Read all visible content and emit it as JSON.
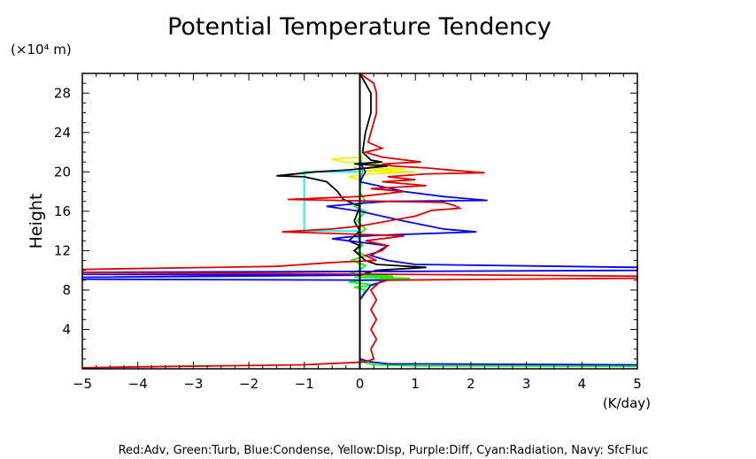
{
  "chart_data": {
    "type": "line",
    "title": "Potential Temperature Tendency",
    "ylabel": "Height",
    "yunit": "(×10⁴ m)",
    "xunit": "(K/day)",
    "xlim": [
      -5,
      5
    ],
    "ylim": [
      0,
      30
    ],
    "xticks": [
      "−5",
      "−4",
      "−3",
      "−2",
      "−1",
      "0",
      "1",
      "2",
      "3",
      "4",
      "5"
    ],
    "xtick_values": [
      -5,
      -4,
      -3,
      -2,
      -1,
      0,
      1,
      2,
      3,
      4,
      5
    ],
    "yticks": [
      "4",
      "8",
      "12",
      "16",
      "20",
      "24",
      "28"
    ],
    "ytick_values": [
      4,
      8,
      12,
      16,
      20,
      24,
      28
    ],
    "legend_text": "Red:Adv, Green:Turb, Blue:Condense, Yellow:Disp, Purple:Diff, Cyan:Radiation, Navy: SfcFluc",
    "series": [
      {
        "color": "#f0f000",
        "points": [
          [
            0,
            22
          ],
          [
            0.05,
            21.5
          ],
          [
            -0.5,
            21.3
          ],
          [
            -0.3,
            21
          ],
          [
            0.3,
            20.8
          ],
          [
            0.6,
            20.6
          ],
          [
            -0.1,
            20.4
          ],
          [
            0.8,
            20.3
          ],
          [
            0.1,
            20.1
          ],
          [
            1,
            20
          ],
          [
            0.2,
            19.8
          ],
          [
            -0.2,
            19.5
          ],
          [
            0,
            19.2
          ],
          [
            0,
            0
          ]
        ]
      },
      {
        "color": "#00ff00",
        "points": [
          [
            0,
            22
          ],
          [
            0.05,
            20
          ],
          [
            0,
            18
          ],
          [
            0.1,
            17
          ],
          [
            -0.1,
            16.5
          ],
          [
            0.1,
            16
          ],
          [
            -0.05,
            15
          ],
          [
            0.1,
            14.2
          ],
          [
            -0.05,
            13.5
          ],
          [
            0.05,
            12.5
          ],
          [
            -0.1,
            12
          ],
          [
            0.1,
            11.5
          ],
          [
            -0.15,
            11
          ],
          [
            0.1,
            10.5
          ],
          [
            0,
            10
          ],
          [
            -0.2,
            9.6
          ],
          [
            0.6,
            9.4
          ],
          [
            -0.1,
            9.3
          ],
          [
            0.9,
            9.2
          ],
          [
            0.1,
            9
          ],
          [
            -0.2,
            8.8
          ],
          [
            0.3,
            8.5
          ],
          [
            -0.1,
            8.3
          ],
          [
            0.1,
            8
          ],
          [
            0,
            7
          ],
          [
            0,
            1
          ],
          [
            0.1,
            0.6
          ],
          [
            0.3,
            0.4
          ],
          [
            1,
            0.3
          ],
          [
            5,
            0.25
          ]
        ]
      },
      {
        "color": "#00ffff",
        "points": [
          [
            0,
            20
          ],
          [
            -1,
            20
          ],
          [
            -1,
            14
          ],
          [
            0,
            14
          ]
        ]
      },
      {
        "color": "#000000",
        "points": [
          [
            0,
            30
          ],
          [
            0.2,
            28
          ],
          [
            0.2,
            26
          ],
          [
            0.1,
            24
          ],
          [
            0.05,
            22
          ],
          [
            0.2,
            21.2
          ],
          [
            0.4,
            21
          ],
          [
            -0.1,
            20.8
          ],
          [
            0.5,
            20.6
          ],
          [
            -0.2,
            20.2
          ],
          [
            -0.8,
            20
          ],
          [
            -1.5,
            19.6
          ],
          [
            -1,
            19.5
          ],
          [
            -0.6,
            19
          ],
          [
            -0.4,
            18
          ],
          [
            -0.3,
            17.2
          ],
          [
            0,
            16.5
          ],
          [
            -0.1,
            15
          ],
          [
            0,
            14
          ],
          [
            -0.2,
            13
          ],
          [
            0,
            12.5
          ],
          [
            -0.1,
            12
          ],
          [
            0.1,
            11
          ],
          [
            0.3,
            10.6
          ],
          [
            1.2,
            10.3
          ],
          [
            0.3,
            10
          ],
          [
            0,
            9.5
          ],
          [
            0,
            0
          ]
        ]
      },
      {
        "color": "#0000ff",
        "points": [
          [
            0,
            21
          ],
          [
            0.1,
            20
          ],
          [
            0,
            19
          ],
          [
            0.8,
            18
          ],
          [
            1.5,
            17.5
          ],
          [
            2.3,
            17.1
          ],
          [
            0.5,
            17
          ],
          [
            0,
            16.8
          ],
          [
            -0.6,
            16.5
          ],
          [
            0,
            16
          ],
          [
            0.8,
            15
          ],
          [
            1.5,
            14.2
          ],
          [
            2.1,
            13.9
          ],
          [
            0.5,
            13.6
          ],
          [
            -0.2,
            13.4
          ],
          [
            -0.5,
            13.2
          ],
          [
            -0.2,
            13
          ],
          [
            0.5,
            12.5
          ],
          [
            0.2,
            11.5
          ],
          [
            0.5,
            11
          ],
          [
            1,
            10.6
          ],
          [
            5,
            10.3
          ],
          [
            5,
            10
          ],
          [
            1,
            9.9
          ],
          [
            -5,
            9.8
          ],
          [
            -5,
            9.6
          ],
          [
            0,
            9.5
          ],
          [
            -5,
            9.3
          ],
          [
            -5,
            9.1
          ],
          [
            0.5,
            9.0
          ],
          [
            0.2,
            8.5
          ],
          [
            0,
            7
          ],
          [
            0,
            1
          ],
          [
            0.2,
            0.7
          ],
          [
            0.5,
            0.5
          ],
          [
            5,
            0.4
          ]
        ]
      },
      {
        "color": "#dd0000",
        "points": [
          [
            0,
            30
          ],
          [
            0.25,
            29
          ],
          [
            0.3,
            28
          ],
          [
            0.3,
            26
          ],
          [
            0.2,
            24
          ],
          [
            0.15,
            23
          ],
          [
            0.4,
            22.4
          ],
          [
            0.1,
            22
          ],
          [
            0.4,
            21.5
          ],
          [
            1.1,
            21
          ],
          [
            0.4,
            20.8
          ],
          [
            0.6,
            20.6
          ],
          [
            1.2,
            20.4
          ],
          [
            1.8,
            20.1
          ],
          [
            2.25,
            19.9
          ],
          [
            1.2,
            19.8
          ],
          [
            0.5,
            19.5
          ],
          [
            1,
            19.2
          ],
          [
            0.4,
            19
          ],
          [
            1.2,
            18.6
          ],
          [
            0.2,
            18.3
          ],
          [
            0.8,
            18
          ],
          [
            0,
            17.5
          ],
          [
            -1.3,
            17.2
          ],
          [
            0.5,
            17
          ],
          [
            1.5,
            16.9
          ],
          [
            1.7,
            16.6
          ],
          [
            1.8,
            16.3
          ],
          [
            1.3,
            16.1
          ],
          [
            1,
            15.5
          ],
          [
            0.5,
            15
          ],
          [
            0,
            14.5
          ],
          [
            -0.5,
            14.2
          ],
          [
            -1.4,
            13.9
          ],
          [
            -0.2,
            13.7
          ],
          [
            0.8,
            13.5
          ],
          [
            0.1,
            13
          ],
          [
            0.5,
            12.5
          ],
          [
            0.4,
            12
          ],
          [
            0.1,
            11.5
          ],
          [
            0.3,
            11
          ],
          [
            -0.5,
            10.8
          ],
          [
            -1,
            10.6
          ],
          [
            -1.5,
            10.4
          ],
          [
            -5,
            10.1
          ],
          [
            -5,
            9.8
          ],
          [
            0.5,
            9.6
          ],
          [
            5,
            9.4
          ],
          [
            5,
            9.2
          ],
          [
            0.4,
            9
          ],
          [
            0.2,
            8
          ],
          [
            0.3,
            7
          ],
          [
            0.2,
            6
          ],
          [
            0.3,
            5
          ],
          [
            0.2,
            4
          ],
          [
            0.3,
            3
          ],
          [
            0.2,
            2
          ],
          [
            0.25,
            1
          ],
          [
            0.1,
            0.7
          ],
          [
            -1,
            0.4
          ],
          [
            -4,
            0.2
          ],
          [
            -5,
            0.1
          ]
        ]
      }
    ]
  }
}
